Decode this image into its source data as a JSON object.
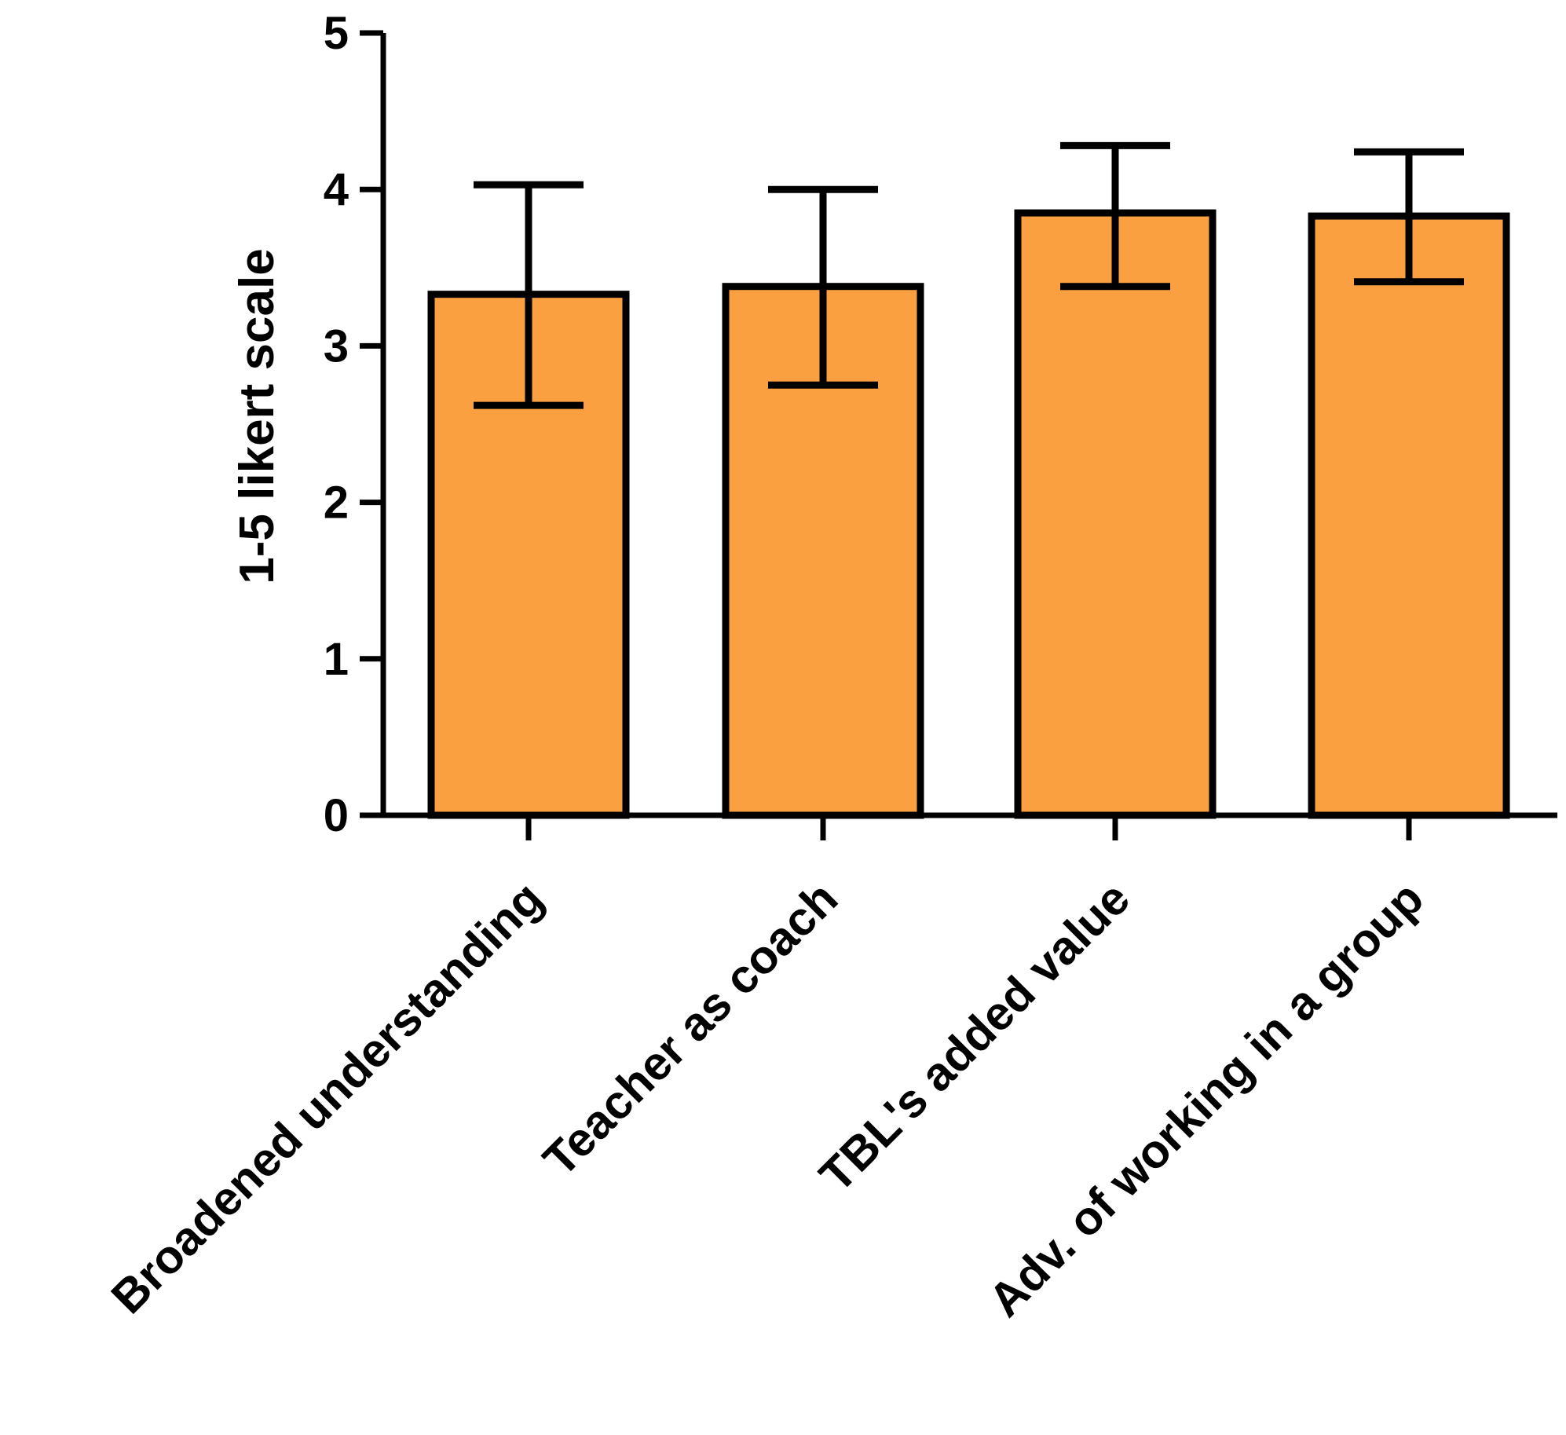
{
  "chart_data": {
    "type": "bar",
    "title": "",
    "xlabel": "",
    "ylabel": "1-5 likert scale",
    "ylim": [
      0,
      5
    ],
    "yticks": [
      0,
      1,
      2,
      3,
      4,
      5
    ],
    "grid": false,
    "categories": [
      "Broadened understanding",
      "Teacher as coach",
      "TBL's added value",
      "Adv. of working in a group"
    ],
    "values": [
      3.33,
      3.38,
      3.85,
      3.83
    ],
    "error_low": [
      2.62,
      2.75,
      3.38,
      3.41
    ],
    "error_high": [
      4.03,
      4.0,
      4.28,
      4.24
    ],
    "bar_color": "#fba040",
    "edge_color": "#000000"
  }
}
